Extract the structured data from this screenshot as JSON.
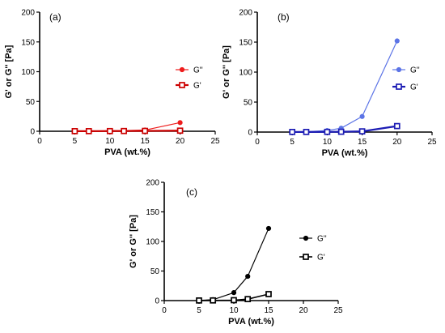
{
  "chart_data": [
    {
      "panel_label": "(a)",
      "type": "line",
      "xlabel": "PVA (wt.%)",
      "ylabel": "G' or G'' [Pa]",
      "xlim": [
        0,
        25
      ],
      "ylim": [
        0,
        200
      ],
      "x_ticks": [
        0,
        5,
        10,
        15,
        20,
        25
      ],
      "y_ticks": [
        0,
        50,
        100,
        150,
        200
      ],
      "legend_position": "right",
      "series": [
        {
          "name": "G''",
          "x": [
            5,
            7,
            10,
            12,
            15,
            20
          ],
          "values": [
            0.3,
            0.4,
            0.8,
            1.0,
            2.0,
            14.5
          ],
          "color": "#ee1c1c",
          "marker": "circle-filled",
          "stroke_width": 1.2
        },
        {
          "name": "G'",
          "x": [
            5,
            7,
            10,
            12,
            15,
            20
          ],
          "values": [
            0.2,
            0.2,
            0.3,
            0.4,
            0.6,
            1.0
          ],
          "color": "#cc0000",
          "marker": "square-open",
          "stroke_width": 2.2
        }
      ]
    },
    {
      "panel_label": "(b)",
      "type": "line",
      "xlabel": "PVA (wt.%)",
      "ylabel": "G' or G'' [Pa]",
      "xlim": [
        0,
        25
      ],
      "ylim": [
        0,
        200
      ],
      "x_ticks": [
        0,
        5,
        10,
        15,
        20,
        25
      ],
      "y_ticks": [
        0,
        50,
        100,
        150,
        200
      ],
      "legend_position": "right",
      "series": [
        {
          "name": "G''",
          "x": [
            5,
            7,
            10,
            12,
            15,
            20
          ],
          "values": [
            0.3,
            0.5,
            2.5,
            6.5,
            26.0,
            152.0
          ],
          "color": "#5c74e6",
          "marker": "circle-filled",
          "stroke_width": 1.2
        },
        {
          "name": "G'",
          "x": [
            5,
            7,
            10,
            12,
            15,
            20
          ],
          "values": [
            0.2,
            0.2,
            0.3,
            0.5,
            1.2,
            10.0
          ],
          "color": "#1c1cb4",
          "marker": "square-open",
          "stroke_width": 2.2
        }
      ]
    },
    {
      "panel_label": "(c)",
      "type": "line",
      "xlabel": "PVA (wt.%)",
      "ylabel": "G' or G'' [Pa]",
      "xlim": [
        0,
        25
      ],
      "ylim": [
        0,
        200
      ],
      "x_ticks": [
        0,
        5,
        10,
        15,
        20,
        25
      ],
      "y_ticks": [
        0,
        50,
        100,
        150,
        200
      ],
      "legend_position": "right",
      "series": [
        {
          "name": "G''",
          "x": [
            5,
            7,
            10,
            12,
            15
          ],
          "values": [
            0.3,
            1.5,
            13.5,
            41.0,
            122.0
          ],
          "color": "#000000",
          "marker": "circle-filled",
          "stroke_width": 1.2
        },
        {
          "name": "G'",
          "x": [
            5,
            7,
            10,
            12,
            15
          ],
          "values": [
            0.2,
            0.3,
            0.7,
            2.5,
            11.0
          ],
          "color": "#000000",
          "marker": "square-open",
          "stroke_width": 1.6
        }
      ]
    }
  ]
}
